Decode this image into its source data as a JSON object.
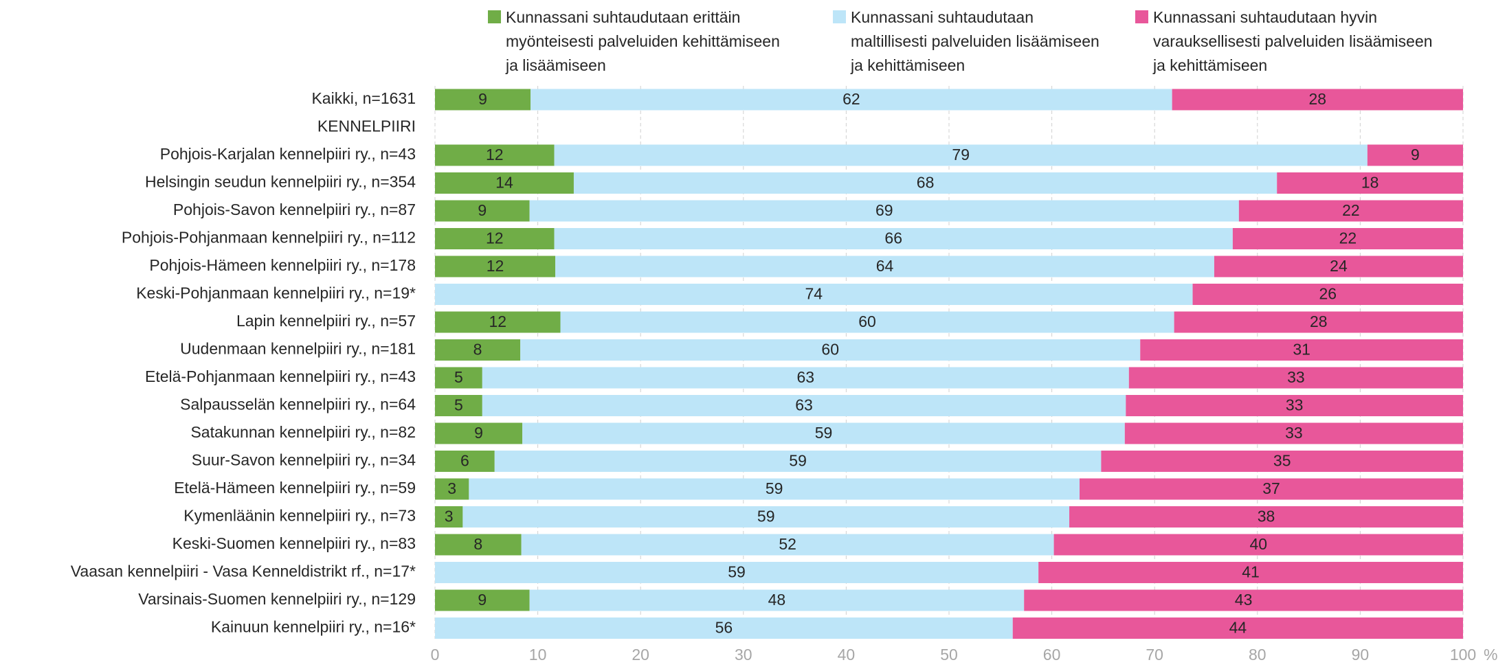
{
  "chart_data": {
    "type": "stacked_barh",
    "categories": [
      "Kaikki, n=1631",
      "KENNELPIIRI",
      "Pohjois-Karjalan kennelpiiri ry., n=43",
      "Helsingin seudun kennelpiiri ry., n=354",
      "Pohjois-Savon kennelpiiri ry., n=87",
      "Pohjois-Pohjanmaan kennelpiiri ry., n=112",
      "Pohjois-Hämeen kennelpiiri ry., n=178",
      "Keski-Pohjanmaan kennelpiiri ry., n=19*",
      "Lapin kennelpiiri ry., n=57",
      "Uudenmaan kennelpiiri ry., n=181",
      "Etelä-Pohjanmaan kennelpiiri ry., n=43",
      "Salpausselän kennelpiiri ry., n=64",
      "Satakunnan kennelpiiri ry., n=82",
      "Suur-Savon kennelpiiri ry., n=34",
      "Etelä-Hämeen kennelpiiri ry., n=59",
      "Kymenläänin kennelpiiri ry., n=73",
      "Keski-Suomen kennelpiiri ry., n=83",
      "Vaasan kennelpiiri - Vasa Kenneldistrikt rf., n=17*",
      "Varsinais-Suomen kennelpiiri ry., n=129",
      "Kainuun kennelpiiri ry., n=16*"
    ],
    "series": [
      {
        "name": "Kunnassani suhtaudutaan erittäin myönteisesti palveluiden kehittämiseen ja lisäämiseen",
        "color": "#70ad47",
        "values": [
          9.3,
          null,
          11.6,
          13.5,
          9.2,
          11.6,
          11.7,
          null,
          12.2,
          8.3,
          4.6,
          4.6,
          8.5,
          5.8,
          3.3,
          2.7,
          8.4,
          null,
          9.2,
          null
        ],
        "value_labels": [
          "9",
          null,
          "12",
          "14",
          "9",
          "12",
          "12",
          null,
          "12",
          "8",
          "5",
          "5",
          "9",
          "6",
          "3",
          "3",
          "8",
          null,
          "9",
          null
        ]
      },
      {
        "name": "Kunnassani suhtaudutaan maltillisesti palveluiden lisäämiseen ja kehittämiseen",
        "color": "#bde5f8",
        "values": [
          62.4,
          null,
          79.1,
          68.4,
          69.0,
          66.0,
          64.1,
          73.7,
          59.7,
          60.3,
          62.9,
          62.6,
          58.6,
          59.0,
          59.4,
          59.0,
          51.8,
          58.7,
          48.1,
          56.2
        ],
        "value_labels": [
          "62",
          null,
          "79",
          "68",
          "69",
          "66",
          "64",
          "74",
          "60",
          "60",
          "63",
          "63",
          "59",
          "59",
          "59",
          "59",
          "52",
          "59",
          "48",
          "56"
        ]
      },
      {
        "name": "Kunnassani suhtaudutaan hyvin varauksellisesti palveluiden lisäämiseen ja kehittämiseen",
        "color": "#e8579a",
        "values": [
          28.3,
          null,
          9.3,
          18.1,
          21.8,
          22.4,
          24.2,
          26.3,
          28.1,
          31.4,
          32.5,
          32.8,
          32.9,
          35.2,
          37.3,
          38.3,
          39.8,
          41.3,
          42.7,
          43.8
        ],
        "value_labels": [
          "28",
          null,
          "9",
          "18",
          "22",
          "22",
          "24",
          "26",
          "28",
          "31",
          "33",
          "33",
          "33",
          "35",
          "37",
          "38",
          "40",
          "41",
          "43",
          "44"
        ]
      }
    ],
    "xlim": [
      0,
      100
    ],
    "xticks": [
      0,
      10,
      20,
      30,
      40,
      50,
      60,
      70,
      80,
      90,
      100
    ],
    "x_label": "%",
    "grid": true
  }
}
